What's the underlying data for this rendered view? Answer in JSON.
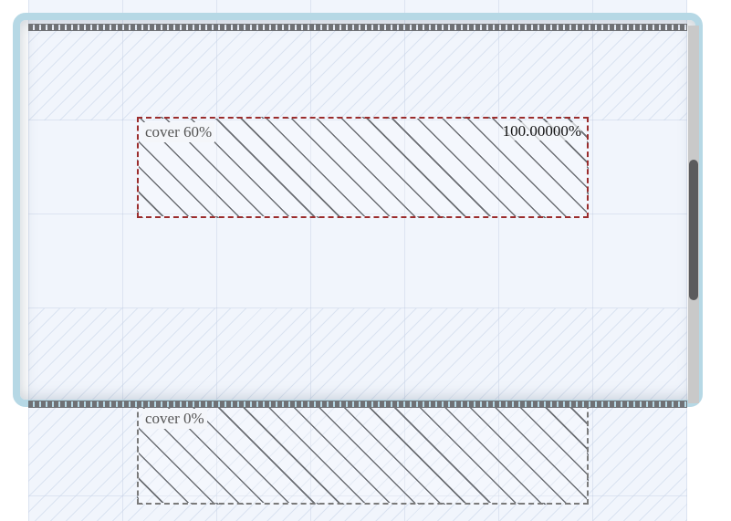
{
  "targets": [
    {
      "label": "cover 60%",
      "ratio": "100.00000%",
      "state": "active"
    },
    {
      "label": "cover 0%",
      "state": "inactive"
    }
  ],
  "scrollbar": {
    "position": 0.45
  },
  "colors": {
    "frame": "#b6d8e5",
    "active_border": "#9b2c2c",
    "inactive_border": "#7a7a7a",
    "canvas": "#f1f5fc",
    "thumb": "#5b5b5d"
  }
}
